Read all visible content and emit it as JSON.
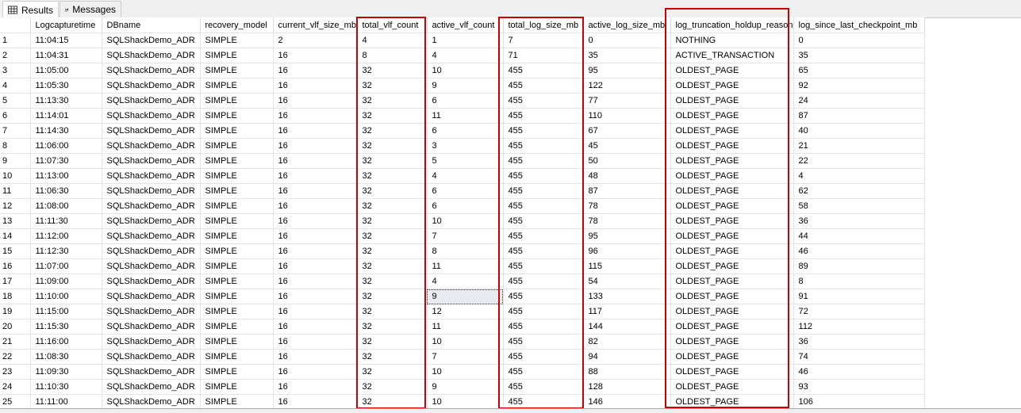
{
  "tabs": [
    {
      "label": "Results",
      "icon": "grid-icon"
    },
    {
      "label": "Messages",
      "icon": "messages-icon"
    }
  ],
  "columns": [
    "",
    "Logcapturetime",
    "DBname",
    "recovery_model",
    "current_vlf_size_mb",
    "total_vlf_count",
    "active_vlf_count",
    "total_log_size_mb",
    "active_log_size_mb",
    "log_truncation_holdup_reason",
    "log_since_last_checkpoint_mb"
  ],
  "rows": [
    [
      "1",
      "11:04:15",
      "SQLShackDemo_ADR",
      "SIMPLE",
      "2",
      "4",
      "1",
      "7",
      "0",
      "NOTHING",
      "0"
    ],
    [
      "2",
      "11:04:31",
      "SQLShackDemo_ADR",
      "SIMPLE",
      "16",
      "8",
      "4",
      "71",
      "35",
      "ACTIVE_TRANSACTION",
      "35"
    ],
    [
      "3",
      "11:05:00",
      "SQLShackDemo_ADR",
      "SIMPLE",
      "16",
      "32",
      "10",
      "455",
      "95",
      "OLDEST_PAGE",
      "65"
    ],
    [
      "4",
      "11:05:30",
      "SQLShackDemo_ADR",
      "SIMPLE",
      "16",
      "32",
      "9",
      "455",
      "122",
      "OLDEST_PAGE",
      "92"
    ],
    [
      "5",
      "11:13:30",
      "SQLShackDemo_ADR",
      "SIMPLE",
      "16",
      "32",
      "6",
      "455",
      "77",
      "OLDEST_PAGE",
      "24"
    ],
    [
      "6",
      "11:14:01",
      "SQLShackDemo_ADR",
      "SIMPLE",
      "16",
      "32",
      "11",
      "455",
      "110",
      "OLDEST_PAGE",
      "87"
    ],
    [
      "7",
      "11:14:30",
      "SQLShackDemo_ADR",
      "SIMPLE",
      "16",
      "32",
      "6",
      "455",
      "67",
      "OLDEST_PAGE",
      "40"
    ],
    [
      "8",
      "11:06:00",
      "SQLShackDemo_ADR",
      "SIMPLE",
      "16",
      "32",
      "3",
      "455",
      "45",
      "OLDEST_PAGE",
      "21"
    ],
    [
      "9",
      "11:07:30",
      "SQLShackDemo_ADR",
      "SIMPLE",
      "16",
      "32",
      "5",
      "455",
      "50",
      "OLDEST_PAGE",
      "22"
    ],
    [
      "10",
      "11:13:00",
      "SQLShackDemo_ADR",
      "SIMPLE",
      "16",
      "32",
      "4",
      "455",
      "48",
      "OLDEST_PAGE",
      "4"
    ],
    [
      "11",
      "11:06:30",
      "SQLShackDemo_ADR",
      "SIMPLE",
      "16",
      "32",
      "6",
      "455",
      "87",
      "OLDEST_PAGE",
      "62"
    ],
    [
      "12",
      "11:08:00",
      "SQLShackDemo_ADR",
      "SIMPLE",
      "16",
      "32",
      "6",
      "455",
      "78",
      "OLDEST_PAGE",
      "58"
    ],
    [
      "13",
      "11:11:30",
      "SQLShackDemo_ADR",
      "SIMPLE",
      "16",
      "32",
      "10",
      "455",
      "78",
      "OLDEST_PAGE",
      "36"
    ],
    [
      "14",
      "11:12:00",
      "SQLShackDemo_ADR",
      "SIMPLE",
      "16",
      "32",
      "7",
      "455",
      "95",
      "OLDEST_PAGE",
      "44"
    ],
    [
      "15",
      "11:12:30",
      "SQLShackDemo_ADR",
      "SIMPLE",
      "16",
      "32",
      "8",
      "455",
      "96",
      "OLDEST_PAGE",
      "46"
    ],
    [
      "16",
      "11:07:00",
      "SQLShackDemo_ADR",
      "SIMPLE",
      "16",
      "32",
      "11",
      "455",
      "115",
      "OLDEST_PAGE",
      "89"
    ],
    [
      "17",
      "11:09:00",
      "SQLShackDemo_ADR",
      "SIMPLE",
      "16",
      "32",
      "4",
      "455",
      "54",
      "OLDEST_PAGE",
      "8"
    ],
    [
      "18",
      "11:10:00",
      "SQLShackDemo_ADR",
      "SIMPLE",
      "16",
      "32",
      "9",
      "455",
      "133",
      "OLDEST_PAGE",
      "91"
    ],
    [
      "19",
      "11:15:00",
      "SQLShackDemo_ADR",
      "SIMPLE",
      "16",
      "32",
      "12",
      "455",
      "117",
      "OLDEST_PAGE",
      "72"
    ],
    [
      "20",
      "11:15:30",
      "SQLShackDemo_ADR",
      "SIMPLE",
      "16",
      "32",
      "11",
      "455",
      "144",
      "OLDEST_PAGE",
      "112"
    ],
    [
      "21",
      "11:16:00",
      "SQLShackDemo_ADR",
      "SIMPLE",
      "16",
      "32",
      "10",
      "455",
      "82",
      "OLDEST_PAGE",
      "36"
    ],
    [
      "22",
      "11:08:30",
      "SQLShackDemo_ADR",
      "SIMPLE",
      "16",
      "32",
      "7",
      "455",
      "94",
      "OLDEST_PAGE",
      "74"
    ],
    [
      "23",
      "11:09:30",
      "SQLShackDemo_ADR",
      "SIMPLE",
      "16",
      "32",
      "10",
      "455",
      "88",
      "OLDEST_PAGE",
      "46"
    ],
    [
      "24",
      "11:10:30",
      "SQLShackDemo_ADR",
      "SIMPLE",
      "16",
      "32",
      "9",
      "455",
      "128",
      "OLDEST_PAGE",
      "93"
    ],
    [
      "25",
      "11:11:00",
      "SQLShackDemo_ADR",
      "SIMPLE",
      "16",
      "32",
      "10",
      "455",
      "146",
      "OLDEST_PAGE",
      "106"
    ]
  ],
  "highlight_color": "#cc0000"
}
